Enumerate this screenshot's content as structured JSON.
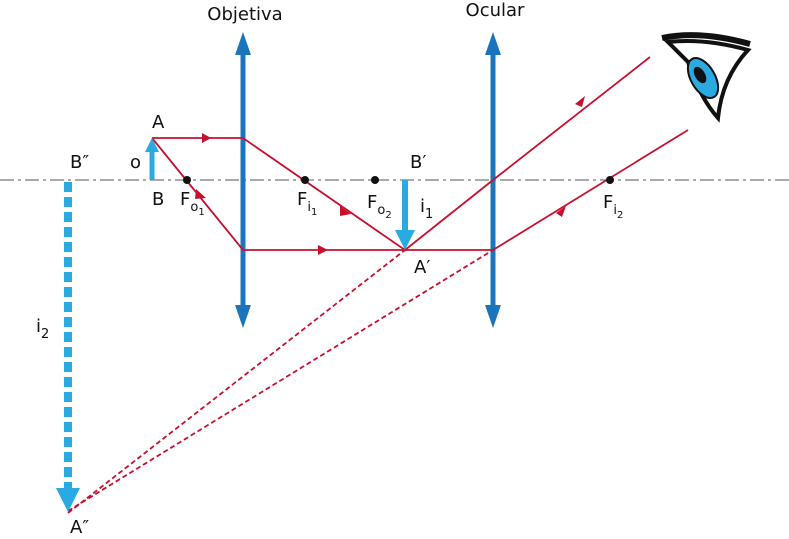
{
  "lenses": [
    {
      "label": "Objetiva"
    },
    {
      "label": "Ocular"
    }
  ],
  "labels": [
    {
      "text": "A"
    },
    {
      "text": "o"
    },
    {
      "text": "B"
    },
    {
      "text": "F",
      "sub": "o",
      "subsub": "1"
    },
    {
      "text": "F",
      "sub": "i",
      "subsub": "1"
    },
    {
      "text": "F",
      "sub": "o",
      "subsub": "2"
    },
    {
      "text": "B′"
    },
    {
      "text": "i",
      "sub": "1"
    },
    {
      "text": "A′"
    },
    {
      "text": "F",
      "sub": "i",
      "subsub": "2"
    },
    {
      "text": "B″"
    },
    {
      "text": "i",
      "sub": "2"
    },
    {
      "text": "A″"
    }
  ]
}
